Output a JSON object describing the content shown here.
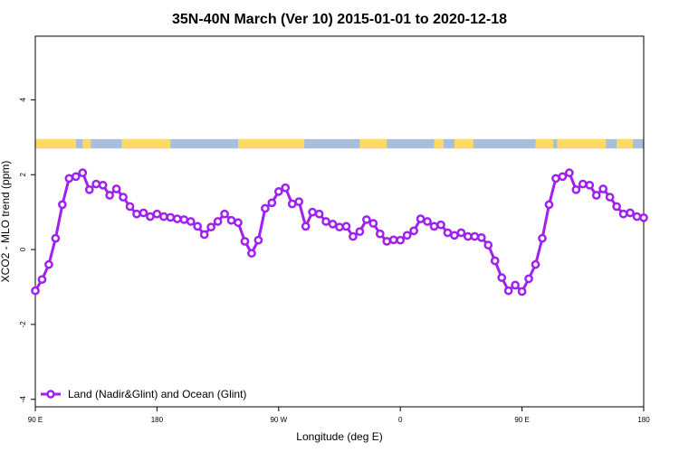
{
  "chart_data": {
    "type": "line",
    "title": "35N-40N March (Ver 10)   2015-01-01 to 2020-12-18",
    "xlabel": "Longitude (deg E)",
    "ylabel": "XCO2 - MLO trend (ppm)",
    "x_ticks": [
      {
        "value": 90,
        "label": "90 E"
      },
      {
        "value": 180,
        "label": "180"
      },
      {
        "value": 270,
        "label": "90 W"
      },
      {
        "value": 360,
        "label": "0"
      },
      {
        "value": 450,
        "label": "90 E"
      },
      {
        "value": 540,
        "label": "180"
      }
    ],
    "y_ticks": [
      {
        "value": -4,
        "label": "-4"
      },
      {
        "value": -2,
        "label": "-2"
      },
      {
        "value": 0,
        "label": "0"
      },
      {
        "value": 2,
        "label": "2"
      },
      {
        "value": 4,
        "label": "4"
      }
    ],
    "xlim": [
      90,
      540
    ],
    "ylim": [
      -4.2,
      5.7
    ],
    "grid": false,
    "legend_position": "bottom-left",
    "colors": {
      "series": "#a020f0",
      "land": "#ffd966",
      "ocean": "#a7bfdc"
    },
    "land_ocean_band": {
      "y_range": [
        2.7,
        2.95
      ],
      "land_segments": [
        [
          90,
          120
        ],
        [
          125,
          131
        ],
        [
          154,
          190
        ],
        [
          240,
          289
        ],
        [
          330,
          350
        ],
        [
          385,
          392
        ],
        [
          400,
          414
        ],
        [
          460,
          473
        ],
        [
          476,
          512
        ],
        [
          520,
          532
        ]
      ]
    },
    "series": [
      {
        "name": "Land (Nadir&Glint) and Ocean (Glint)",
        "x": [
          90,
          95,
          100,
          105,
          110,
          115,
          120,
          125,
          130,
          135,
          140,
          145,
          150,
          155,
          160,
          165,
          170,
          175,
          180,
          185,
          190,
          195,
          200,
          205,
          210,
          215,
          220,
          225,
          230,
          235,
          240,
          245,
          250,
          255,
          260,
          265,
          270,
          275,
          280,
          285,
          290,
          295,
          300,
          305,
          310,
          315,
          320,
          325,
          330,
          335,
          340,
          345,
          350,
          355,
          360,
          365,
          370,
          375,
          380,
          385,
          390,
          395,
          400,
          405,
          410,
          415,
          420,
          425,
          430,
          435,
          440,
          445,
          450,
          455,
          460,
          465,
          470,
          475,
          480,
          485,
          490,
          495,
          500,
          505,
          510,
          515,
          520,
          525,
          530,
          535,
          540
        ],
        "values": [
          -1.1,
          -0.8,
          -0.4,
          0.3,
          1.2,
          1.9,
          1.95,
          2.05,
          1.6,
          1.75,
          1.72,
          1.45,
          1.62,
          1.4,
          1.15,
          0.95,
          0.98,
          0.88,
          0.95,
          0.88,
          0.86,
          0.82,
          0.8,
          0.75,
          0.62,
          0.4,
          0.6,
          0.75,
          0.95,
          0.78,
          0.72,
          0.22,
          -0.1,
          0.25,
          1.1,
          1.25,
          1.55,
          1.65,
          1.22,
          1.28,
          0.62,
          1.0,
          0.95,
          0.75,
          0.68,
          0.6,
          0.62,
          0.35,
          0.48,
          0.8,
          0.7,
          0.42,
          0.22,
          0.26,
          0.25,
          0.38,
          0.5,
          0.82,
          0.75,
          0.62,
          0.66,
          0.45,
          0.38,
          0.45,
          0.35,
          0.35,
          0.32,
          0.12,
          -0.3,
          -0.75,
          -1.1,
          -0.95,
          -1.12,
          -0.78,
          -0.4,
          0.3,
          1.2,
          1.9,
          1.95,
          2.05,
          1.6,
          1.75,
          1.72,
          1.45,
          1.62,
          1.4,
          1.15,
          0.95,
          0.98,
          0.88,
          0.85
        ]
      }
    ]
  }
}
